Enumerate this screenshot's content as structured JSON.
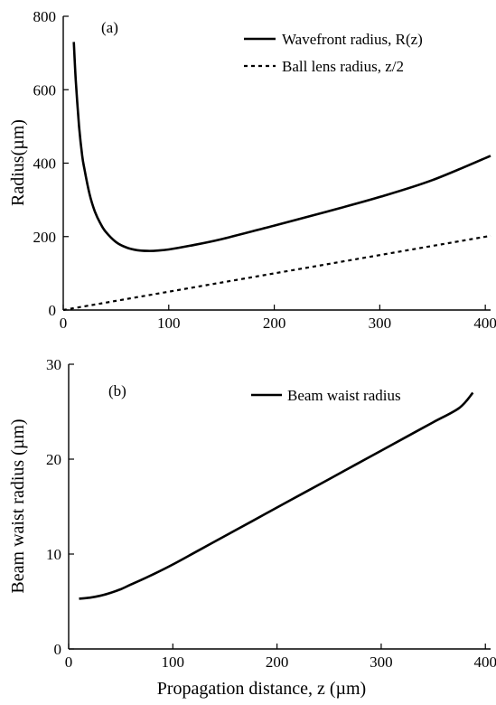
{
  "chart_data": [
    {
      "type": "line",
      "panel_label": "(a)",
      "xlabel": "",
      "ylabel": "Radius(µm)",
      "xlim": [
        0,
        405
      ],
      "ylim": [
        0,
        800
      ],
      "x_ticks": [
        0,
        100,
        200,
        300,
        400
      ],
      "y_ticks": [
        0,
        200,
        400,
        600,
        800
      ],
      "grid": false,
      "legend_position": "top-right",
      "series": [
        {
          "name": "Wavefront radius, R(z)",
          "style": "solid",
          "x": [
            10,
            12,
            15,
            18,
            20,
            25,
            30,
            35,
            40,
            50,
            60,
            70,
            80,
            90,
            100,
            120,
            150,
            200,
            250,
            300,
            350,
            405
          ],
          "y": [
            730,
            620,
            500,
            420,
            385,
            315,
            268,
            237,
            214,
            185,
            170,
            163,
            161,
            162,
            165,
            175,
            193,
            230,
            268,
            308,
            354,
            420
          ]
        },
        {
          "name": "Ball lens radius, z/2",
          "style": "dashed",
          "x": [
            0,
            405
          ],
          "y": [
            0,
            202
          ]
        }
      ]
    },
    {
      "type": "line",
      "panel_label": "(b)",
      "xlabel": "Propagation distance, z (µm)",
      "ylabel": "Beam waist radius (µm)",
      "xlim": [
        0,
        405
      ],
      "ylim": [
        0,
        30
      ],
      "x_ticks": [
        0,
        100,
        200,
        300,
        400
      ],
      "y_ticks": [
        0,
        10,
        20,
        30
      ],
      "grid": false,
      "legend_position": "top-right",
      "series": [
        {
          "name": "Beam waist radius",
          "style": "solid",
          "x": [
            10,
            20,
            30,
            40,
            50,
            60,
            80,
            100,
            125,
            150,
            175,
            200,
            225,
            250,
            275,
            300,
            325,
            350,
            375,
            388
          ],
          "y": [
            5.3,
            5.4,
            5.6,
            5.9,
            6.3,
            6.8,
            7.8,
            8.9,
            10.4,
            11.9,
            13.4,
            14.9,
            16.4,
            17.9,
            19.4,
            20.9,
            22.4,
            23.9,
            25.4,
            27.0
          ]
        }
      ]
    }
  ]
}
